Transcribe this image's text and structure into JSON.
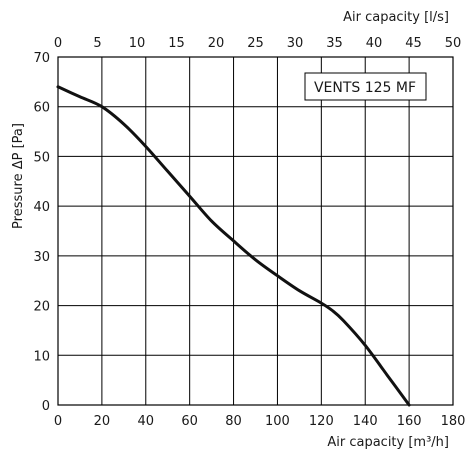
{
  "chart_data": {
    "type": "line",
    "legend_label": "VENTS 125 MF",
    "xlabel_bottom": "Air capacity [m³/h]",
    "xlabel_top": "Air capacity [l/s]",
    "ylabel": "Pressure ΔP [Pa]",
    "xlim": [
      0,
      180
    ],
    "xlim_top": [
      0,
      50
    ],
    "ylim": [
      0,
      70
    ],
    "x_ticks": [
      0,
      20,
      40,
      60,
      80,
      100,
      120,
      140,
      160,
      180
    ],
    "x_top_ticks": [
      0,
      5,
      10,
      15,
      20,
      25,
      30,
      35,
      40,
      45,
      50
    ],
    "y_ticks": [
      0,
      10,
      20,
      30,
      40,
      50,
      60,
      70
    ],
    "grid": true,
    "legend_position": "top-right",
    "line_color": "#111111",
    "series": [
      {
        "x": [
          0,
          10,
          20,
          30,
          40,
          50,
          60,
          70,
          80,
          90,
          100,
          110,
          120,
          125,
          130,
          140,
          150,
          160
        ],
        "y": [
          64,
          62,
          60,
          56.5,
          52,
          47,
          42,
          37,
          33,
          29.2,
          26,
          23,
          20.5,
          19,
          17,
          12,
          6,
          0
        ]
      }
    ]
  }
}
